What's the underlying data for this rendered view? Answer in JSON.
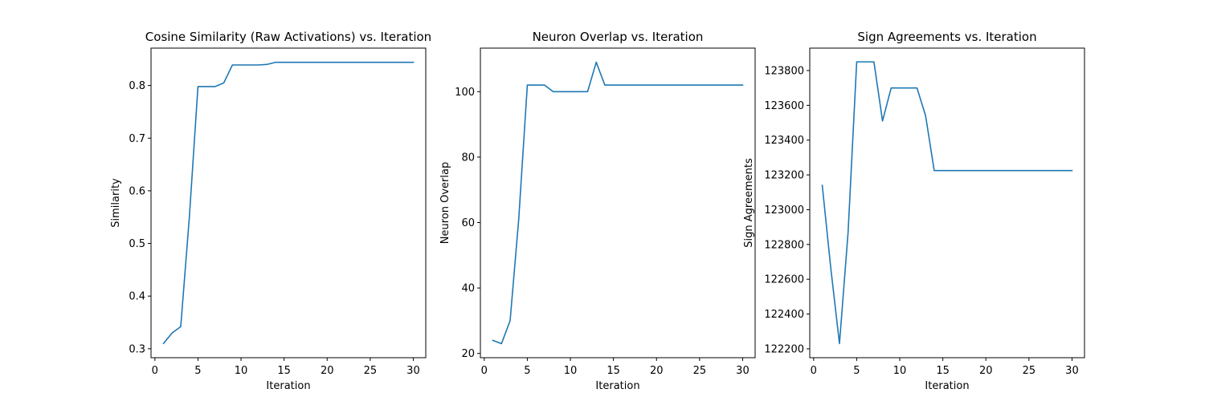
{
  "chart_data": [
    {
      "type": "line",
      "title": "Cosine Similarity (Raw Activations) vs. Iteration",
      "xlabel": "Iteration",
      "ylabel": "Similarity",
      "xlim": [
        -0.45,
        31.45
      ],
      "ylim": [
        0.283,
        0.871
      ],
      "xticks": [
        0,
        5,
        10,
        15,
        20,
        25,
        30
      ],
      "yticks": [
        0.3,
        0.4,
        0.5,
        0.6,
        0.7,
        0.8
      ],
      "ytick_decimals": 1,
      "grid": false,
      "color": "#1f77b4",
      "series": [
        {
          "x": [
            1,
            2,
            3,
            4,
            5,
            6,
            7,
            8,
            9,
            10,
            11,
            12,
            13,
            14,
            15,
            16,
            17,
            18,
            19,
            20,
            21,
            22,
            23,
            24,
            25,
            26,
            27,
            28,
            29,
            30
          ],
          "values": [
            0.31,
            0.33,
            0.342,
            0.55,
            0.798,
            0.798,
            0.798,
            0.805,
            0.839,
            0.839,
            0.839,
            0.839,
            0.84,
            0.844,
            0.844,
            0.844,
            0.844,
            0.844,
            0.844,
            0.844,
            0.844,
            0.844,
            0.844,
            0.844,
            0.844,
            0.844,
            0.844,
            0.844,
            0.844,
            0.844
          ]
        }
      ]
    },
    {
      "type": "line",
      "title": "Neuron Overlap vs. Iteration",
      "xlabel": "Iteration",
      "ylabel": "Neuron Overlap",
      "xlim": [
        -0.45,
        31.45
      ],
      "ylim": [
        18.7,
        113.3
      ],
      "xticks": [
        0,
        5,
        10,
        15,
        20,
        25,
        30
      ],
      "yticks": [
        20,
        40,
        60,
        80,
        100
      ],
      "ytick_decimals": 0,
      "grid": false,
      "color": "#1f77b4",
      "series": [
        {
          "x": [
            1,
            2,
            3,
            4,
            5,
            6,
            7,
            8,
            9,
            10,
            11,
            12,
            13,
            14,
            15,
            16,
            17,
            18,
            19,
            20,
            21,
            22,
            23,
            24,
            25,
            26,
            27,
            28,
            29,
            30
          ],
          "values": [
            24,
            23,
            30,
            61,
            102,
            102,
            102,
            100,
            100,
            100,
            100,
            100,
            109,
            102,
            102,
            102,
            102,
            102,
            102,
            102,
            102,
            102,
            102,
            102,
            102,
            102,
            102,
            102,
            102,
            102
          ]
        }
      ]
    },
    {
      "type": "line",
      "title": "Sign Agreements vs. Iteration",
      "xlabel": "Iteration",
      "ylabel": "Sign Agreements",
      "xlim": [
        -0.45,
        31.45
      ],
      "ylim": [
        122149,
        123929
      ],
      "xticks": [
        0,
        5,
        10,
        15,
        20,
        25,
        30
      ],
      "yticks": [
        122200,
        122400,
        122600,
        122800,
        123000,
        123200,
        123400,
        123600,
        123800
      ],
      "ytick_decimals": 0,
      "grid": false,
      "color": "#1f77b4",
      "series": [
        {
          "x": [
            1,
            2,
            3,
            4,
            5,
            6,
            7,
            8,
            9,
            10,
            11,
            12,
            13,
            14,
            15,
            16,
            17,
            18,
            19,
            20,
            21,
            22,
            23,
            24,
            25,
            26,
            27,
            28,
            29,
            30
          ],
          "values": [
            123140,
            122660,
            122230,
            122870,
            123850,
            123850,
            123850,
            123510,
            123700,
            123700,
            123700,
            123700,
            123540,
            123225,
            123225,
            123225,
            123225,
            123225,
            123225,
            123225,
            123225,
            123225,
            123225,
            123225,
            123225,
            123225,
            123225,
            123225,
            123225,
            123225
          ]
        }
      ]
    }
  ]
}
